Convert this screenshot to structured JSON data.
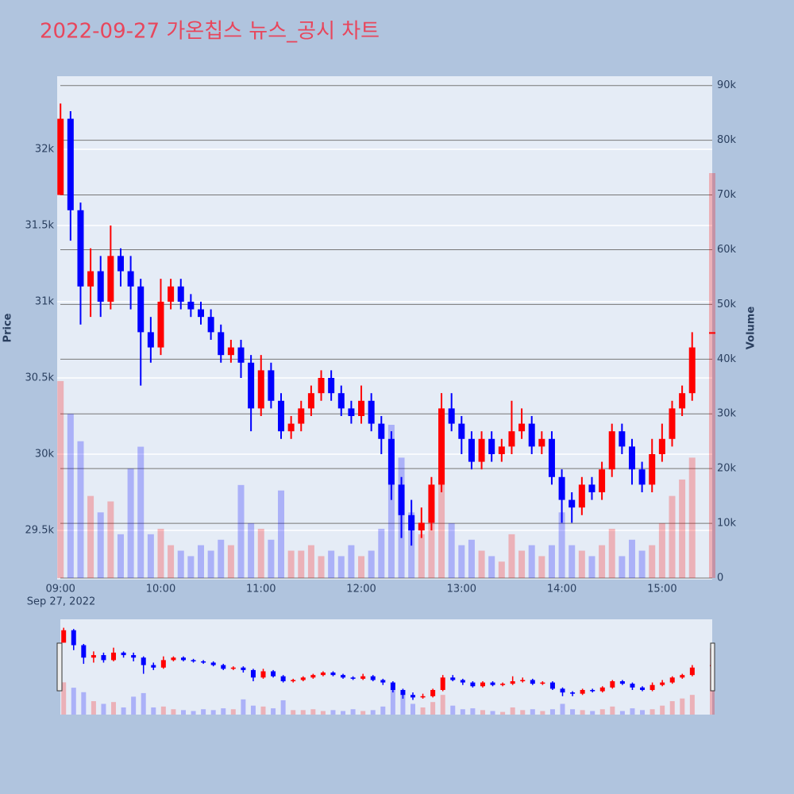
{
  "chart_data": {
    "type": "candlestick",
    "title": "2022-09-27 가온칩스 뉴스_공시 차트",
    "y_title": "Price",
    "y2_title": "Volume",
    "date_label": "Sep 27, 2022",
    "increasing_color": "#ff0000",
    "decreasing_color": "#0000ff",
    "x": [
      "2022-09-27 09:00",
      "2022-09-27 09:06",
      "2022-09-27 09:12",
      "2022-09-27 09:18",
      "2022-09-27 09:24",
      "2022-09-27 09:30",
      "2022-09-27 09:36",
      "2022-09-27 09:42",
      "2022-09-27 09:48",
      "2022-09-27 09:54",
      "2022-09-27 10:00",
      "2022-09-27 10:06",
      "2022-09-27 10:12",
      "2022-09-27 10:18",
      "2022-09-27 10:24",
      "2022-09-27 10:30",
      "2022-09-27 10:36",
      "2022-09-27 10:42",
      "2022-09-27 10:48",
      "2022-09-27 10:54",
      "2022-09-27 11:00",
      "2022-09-27 11:06",
      "2022-09-27 11:12",
      "2022-09-27 11:18",
      "2022-09-27 11:24",
      "2022-09-27 11:30",
      "2022-09-27 11:36",
      "2022-09-27 11:42",
      "2022-09-27 11:48",
      "2022-09-27 11:54",
      "2022-09-27 12:00",
      "2022-09-27 12:06",
      "2022-09-27 12:12",
      "2022-09-27 12:18",
      "2022-09-27 12:24",
      "2022-09-27 12:30",
      "2022-09-27 12:36",
      "2022-09-27 12:42",
      "2022-09-27 12:48",
      "2022-09-27 12:54",
      "2022-09-27 13:00",
      "2022-09-27 13:06",
      "2022-09-27 13:12",
      "2022-09-27 13:18",
      "2022-09-27 13:24",
      "2022-09-27 13:30",
      "2022-09-27 13:36",
      "2022-09-27 13:42",
      "2022-09-27 13:48",
      "2022-09-27 13:54",
      "2022-09-27 14:00",
      "2022-09-27 14:06",
      "2022-09-27 14:12",
      "2022-09-27 14:18",
      "2022-09-27 14:24",
      "2022-09-27 14:30",
      "2022-09-27 14:36",
      "2022-09-27 14:42",
      "2022-09-27 14:48",
      "2022-09-27 14:54",
      "2022-09-27 15:00",
      "2022-09-27 15:06",
      "2022-09-27 15:12",
      "2022-09-27 15:18",
      "2022-09-27 15:30"
    ],
    "open": [
      31700,
      32200,
      31600,
      31100,
      31200,
      31000,
      31300,
      31200,
      31100,
      30800,
      30700,
      31000,
      31100,
      31000,
      30950,
      30900,
      30800,
      30650,
      30700,
      30600,
      30300,
      30550,
      30350,
      30150,
      30200,
      30300,
      30400,
      30500,
      30400,
      30300,
      30250,
      30350,
      30200,
      30100,
      29800,
      29600,
      29500,
      29550,
      29800,
      30300,
      30200,
      30100,
      29950,
      30100,
      30000,
      30050,
      30150,
      30200,
      30050,
      30100,
      29850,
      29700,
      29650,
      29800,
      29750,
      29900,
      30150,
      30050,
      29900,
      29800,
      30000,
      30100,
      30300,
      30400,
      30800
    ],
    "high": [
      32300,
      32250,
      31650,
      31350,
      31300,
      31500,
      31350,
      31300,
      31150,
      30900,
      31150,
      31150,
      31150,
      31050,
      31000,
      30950,
      30850,
      30750,
      30750,
      30650,
      30650,
      30600,
      30400,
      30250,
      30350,
      30450,
      30550,
      30550,
      30450,
      30350,
      30450,
      30400,
      30250,
      30150,
      29850,
      29700,
      29650,
      29850,
      30400,
      30400,
      30250,
      30150,
      30150,
      30150,
      30100,
      30350,
      30300,
      30250,
      30150,
      30150,
      29900,
      29750,
      29850,
      29850,
      29950,
      30200,
      30200,
      30100,
      29950,
      30100,
      30200,
      30350,
      30450,
      30800,
      30800
    ],
    "low": [
      31700,
      31400,
      30850,
      30900,
      30900,
      30950,
      31100,
      30950,
      30450,
      30600,
      30650,
      30950,
      30950,
      30900,
      30850,
      30750,
      30600,
      30600,
      30500,
      30150,
      30250,
      30300,
      30100,
      30100,
      30150,
      30250,
      30350,
      30350,
      30250,
      30200,
      30200,
      30150,
      30000,
      29700,
      29450,
      29400,
      29450,
      29500,
      29750,
      30150,
      30000,
      29900,
      29900,
      29950,
      29950,
      30000,
      30100,
      30000,
      30000,
      29800,
      29550,
      29550,
      29600,
      29700,
      29700,
      29850,
      30000,
      29800,
      29750,
      29750,
      29950,
      30050,
      30250,
      30350,
      30800
    ],
    "close": [
      32200,
      31600,
      31100,
      31200,
      31000,
      31300,
      31200,
      31100,
      30800,
      30700,
      31000,
      31100,
      31000,
      30950,
      30900,
      30800,
      30650,
      30700,
      30600,
      30300,
      30550,
      30350,
      30150,
      30200,
      30300,
      30400,
      30500,
      30400,
      30300,
      30250,
      30350,
      30200,
      30100,
      29800,
      29600,
      29500,
      29550,
      29800,
      30300,
      30200,
      30100,
      29950,
      30100,
      30000,
      30050,
      30150,
      30200,
      30050,
      30100,
      29850,
      29700,
      29650,
      29800,
      29750,
      29900,
      30150,
      30050,
      29900,
      29800,
      30000,
      30100,
      30300,
      30400,
      30700,
      30800
    ],
    "volume": [
      36000,
      30000,
      25000,
      15000,
      12000,
      14000,
      8000,
      20000,
      24000,
      8000,
      9000,
      6000,
      5000,
      4000,
      6000,
      5000,
      7000,
      6000,
      17000,
      10000,
      9000,
      7000,
      16000,
      5000,
      5000,
      6000,
      4000,
      5000,
      4000,
      6000,
      4000,
      5000,
      9000,
      28000,
      22000,
      12000,
      8000,
      14000,
      22000,
      10000,
      6000,
      7000,
      5000,
      4000,
      3000,
      8000,
      5000,
      6000,
      4000,
      6000,
      12000,
      6000,
      5000,
      4000,
      6000,
      9000,
      4000,
      7000,
      5000,
      6000,
      10000,
      15000,
      18000,
      22000,
      74000
    ],
    "xlim": [
      "2022-09-27 08:58",
      "2022-09-27 15:30"
    ],
    "xticks": [
      {
        "value": "2022-09-27 09:00",
        "label": "09:00"
      },
      {
        "value": "2022-09-27 10:00",
        "label": "10:00"
      },
      {
        "value": "2022-09-27 11:00",
        "label": "11:00"
      },
      {
        "value": "2022-09-27 12:00",
        "label": "12:00"
      },
      {
        "value": "2022-09-27 13:00",
        "label": "13:00"
      },
      {
        "value": "2022-09-27 14:00",
        "label": "14:00"
      },
      {
        "value": "2022-09-27 15:00",
        "label": "15:00"
      }
    ],
    "ylim": [
      29177,
      32479
    ],
    "yticks": [
      {
        "value": 29500,
        "label": "29.5k"
      },
      {
        "value": 30000,
        "label": "30k"
      },
      {
        "value": 30500,
        "label": "30.5k"
      },
      {
        "value": 31000,
        "label": "31k"
      },
      {
        "value": 31500,
        "label": "31.5k"
      },
      {
        "value": 32000,
        "label": "32k"
      }
    ],
    "y2lim": [
      0,
      91700
    ],
    "y2ticks": [
      0,
      {
        "value": 10000,
        "label": "10k"
      },
      {
        "value": 20000,
        "label": "20k"
      },
      {
        "value": 30000,
        "label": "30k"
      },
      {
        "value": 40000,
        "label": "40k"
      },
      {
        "value": 50000,
        "label": "50k"
      },
      {
        "value": 60000,
        "label": "60k"
      },
      {
        "value": 70000,
        "label": "70k"
      },
      {
        "value": 80000,
        "label": "80k"
      },
      {
        "value": 90000,
        "label": "90k"
      }
    ],
    "grid": true,
    "range_slider": true
  }
}
